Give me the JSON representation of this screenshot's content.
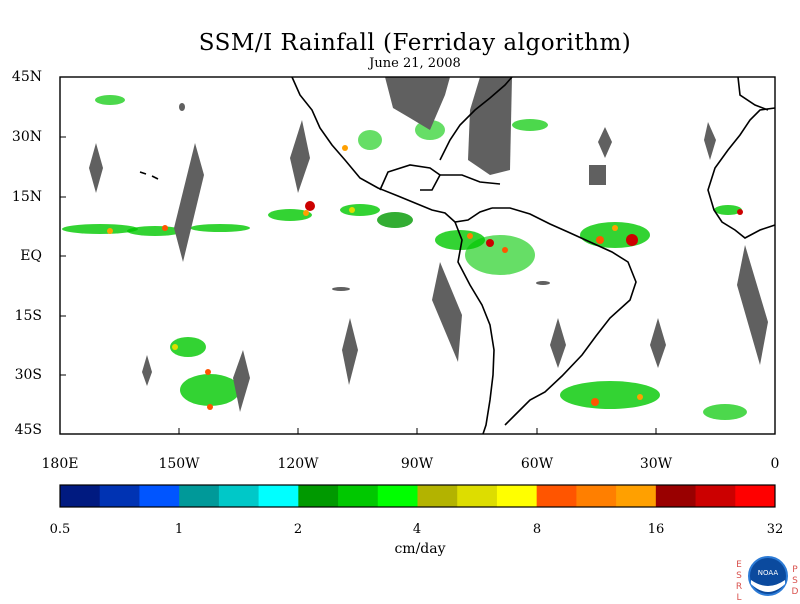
{
  "title": "SSM/I Rainfall (Ferriday algorithm)",
  "subtitle": "June 21, 2008",
  "lat_labels": [
    "45N",
    "30N",
    "15N",
    "EQ",
    "15S",
    "30S",
    "45S"
  ],
  "lon_labels": [
    "180E",
    "150W",
    "120W",
    "90W",
    "60W",
    "30W",
    "0"
  ],
  "colorbar": {
    "ticks": [
      "0.5",
      "1",
      "2",
      "4",
      "8",
      "16",
      "32"
    ],
    "units": "cm/day",
    "colors": [
      "#001a80",
      "#0033b3",
      "#0055ff",
      "#009999",
      "#00c8c8",
      "#00ffff",
      "#009900",
      "#00c800",
      "#00ff00",
      "#b3b300",
      "#dddd00",
      "#ffff00",
      "#ff5500",
      "#ff7f00",
      "#ffa000",
      "#990000",
      "#cc0000",
      "#ff0000"
    ]
  },
  "map": {
    "extent": {
      "lon": [
        -180,
        0
      ],
      "lat": [
        -45,
        45
      ]
    },
    "no_data_color": "#606060"
  },
  "logo": {
    "left_letters": [
      "E",
      "S",
      "R",
      "L"
    ],
    "right_letters": [
      "P",
      "S",
      "D"
    ],
    "center": "NOAA"
  }
}
